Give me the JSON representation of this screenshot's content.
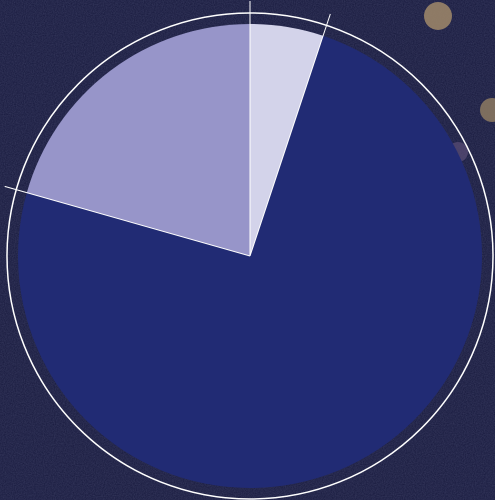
{
  "chart_data": {
    "type": "pie",
    "title": "",
    "start_angle": "12 o'clock",
    "direction": "clockwise",
    "exploded": false,
    "legend": "none",
    "slices": [
      {
        "label": "",
        "value": 5.1,
        "color": "#d3d3ea"
      },
      {
        "label": "",
        "value": 74.3,
        "color": "#212b74"
      },
      {
        "label": "",
        "value": 20.6,
        "color": "#9795c9"
      }
    ]
  },
  "colors": {
    "background": "#14163a",
    "outline_ring": "#ffffff",
    "separator": "#ffffff",
    "decoration": "#9a8468"
  }
}
